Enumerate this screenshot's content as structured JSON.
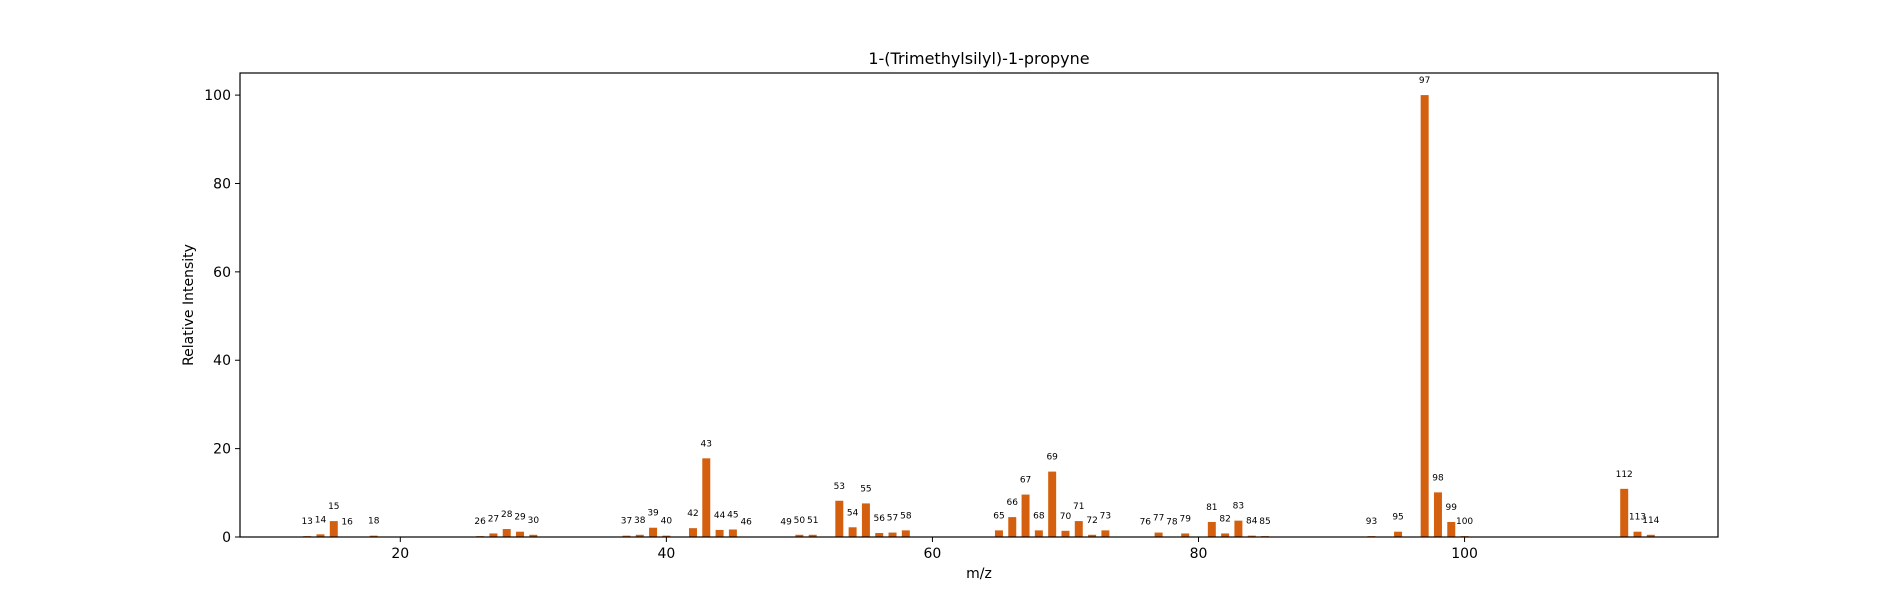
{
  "chart_data": {
    "type": "bar",
    "title": "1-(Trimethylsilyl)-1-propyne",
    "xlabel": "m/z",
    "ylabel": "Relative Intensity",
    "xlim": [
      7.95,
      119.05
    ],
    "ylim": [
      0,
      105
    ],
    "xticks": [
      20,
      40,
      60,
      80,
      100
    ],
    "yticks": [
      0,
      20,
      40,
      60,
      80,
      100
    ],
    "grid": false,
    "bar_color": "#d45f0e",
    "x": [
      13,
      14,
      15,
      16,
      18,
      26,
      27,
      28,
      29,
      30,
      37,
      38,
      39,
      40,
      42,
      43,
      44,
      45,
      46,
      49,
      50,
      51,
      53,
      54,
      55,
      56,
      57,
      58,
      65,
      66,
      67,
      68,
      69,
      70,
      71,
      72,
      73,
      76,
      77,
      78,
      79,
      81,
      82,
      83,
      84,
      85,
      93,
      95,
      97,
      98,
      99,
      100,
      112,
      113,
      114
    ],
    "values": [
      0.2,
      0.6,
      3.6,
      0.1,
      0.3,
      0.2,
      0.8,
      1.8,
      1.2,
      0.5,
      0.3,
      0.5,
      2.1,
      0.3,
      2.0,
      17.8,
      1.6,
      1.7,
      0.1,
      0.1,
      0.5,
      0.5,
      8.2,
      2.2,
      7.6,
      0.9,
      1.0,
      1.5,
      1.5,
      4.5,
      9.6,
      1.5,
      14.8,
      1.4,
      3.6,
      0.5,
      1.5,
      0.1,
      1.0,
      0.1,
      0.8,
      3.4,
      0.8,
      3.7,
      0.3,
      0.2,
      0.2,
      1.2,
      100.0,
      10.1,
      3.4,
      0.2,
      10.9,
      1.2,
      0.5
    ],
    "labels": [
      "13",
      "14",
      "15",
      "16",
      "18",
      "26",
      "27",
      "28",
      "29",
      "30",
      "37",
      "38",
      "39",
      "40",
      "42",
      "43",
      "44",
      "45",
      "46",
      "49",
      "50",
      "51",
      "53",
      "54",
      "55",
      "56",
      "57",
      "58",
      "65",
      "66",
      "67",
      "68",
      "69",
      "70",
      "71",
      "72",
      "73",
      "76",
      "77",
      "78",
      "79",
      "81",
      "82",
      "83",
      "84",
      "85",
      "93",
      "95",
      "97",
      "98",
      "99",
      "100",
      "112",
      "113",
      "114"
    ],
    "label_offsets": [
      0,
      0,
      0,
      0,
      0,
      0,
      0,
      0,
      0,
      0,
      0,
      0,
      0,
      0,
      0,
      0,
      0,
      0,
      0,
      0,
      0,
      0,
      0,
      0,
      0,
      0,
      0,
      0,
      0,
      0,
      0,
      0,
      0,
      0,
      0,
      0,
      0,
      0,
      0,
      0,
      0,
      0,
      0,
      0,
      0,
      0,
      0,
      0,
      0,
      0,
      0,
      0,
      0,
      0,
      0
    ]
  }
}
